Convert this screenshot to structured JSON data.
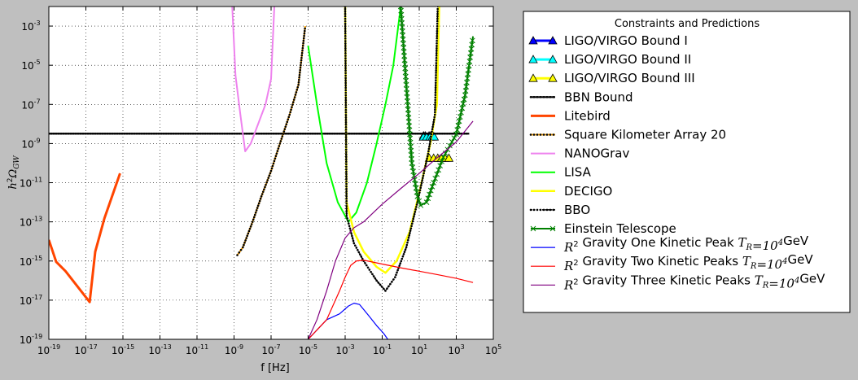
{
  "chart_data": {
    "type": "line",
    "xlabel": "f [Hz]",
    "ylabel": "h²Ω_GW",
    "xscale": "log",
    "yscale": "log",
    "xlim": [
      1e-19,
      100000.0
    ],
    "ylim": [
      1e-19,
      0.01
    ],
    "xticks": [
      {
        "base": "10",
        "exp": "-19"
      },
      {
        "base": "10",
        "exp": "-17"
      },
      {
        "base": "10",
        "exp": "-15"
      },
      {
        "base": "10",
        "exp": "-13"
      },
      {
        "base": "10",
        "exp": "-11"
      },
      {
        "base": "10",
        "exp": "-9"
      },
      {
        "base": "10",
        "exp": "-7"
      },
      {
        "base": "10",
        "exp": "-5"
      },
      {
        "base": "10",
        "exp": "-3"
      },
      {
        "base": "10",
        "exp": "-1"
      },
      {
        "base": "10",
        "exp": "1"
      },
      {
        "base": "10",
        "exp": "3"
      },
      {
        "base": "10",
        "exp": "5"
      }
    ],
    "yticks": [
      {
        "base": "10",
        "exp": "-19"
      },
      {
        "base": "10",
        "exp": "-17"
      },
      {
        "base": "10",
        "exp": "-15"
      },
      {
        "base": "10",
        "exp": "-13"
      },
      {
        "base": "10",
        "exp": "-11"
      },
      {
        "base": "10",
        "exp": "-9"
      },
      {
        "base": "10",
        "exp": "-7"
      },
      {
        "base": "10",
        "exp": "-5"
      },
      {
        "base": "10",
        "exp": "-3"
      }
    ],
    "grid": true,
    "legend": {
      "title": "Constraints and Predictions",
      "placement": "outside-right"
    },
    "series": [
      {
        "name": "LIGO/VIRGO Bound I",
        "color": "#0000ff",
        "marker": "triangle",
        "points": [
          [
            17,
            2.5e-09
          ],
          [
            21,
            2.5e-09
          ],
          [
            34,
            2.5e-09
          ],
          [
            42,
            2.5e-09
          ],
          [
            56,
            2.5e-09
          ]
        ]
      },
      {
        "name": "LIGO/VIRGO Bound II",
        "color": "#00ffff",
        "marker": "triangle",
        "points": [
          [
            17,
            2.2e-09
          ],
          [
            25,
            2.2e-09
          ],
          [
            38,
            2.2e-09
          ],
          [
            50,
            2.2e-09
          ],
          [
            65,
            2.2e-09
          ]
        ]
      },
      {
        "name": "LIGO/VIRGO Bound III",
        "color": "#ffff00",
        "marker": "triangle",
        "points": [
          [
            35,
            1.8e-10
          ],
          [
            60,
            1.8e-10
          ],
          [
            100,
            1.8e-10
          ],
          [
            160,
            1.8e-10
          ],
          [
            250,
            1.8e-10
          ],
          [
            400,
            1.8e-10
          ]
        ]
      },
      {
        "name": "BBN Bound",
        "color": "#000000",
        "marker": "dot",
        "points": [
          [
            1e-19,
            3.2e-09
          ],
          [
            5000.0,
            3.2e-09
          ]
        ]
      },
      {
        "name": "Litebird",
        "color": "#ff4500",
        "points": [
          [
            1e-19,
            1.2e-14
          ],
          [
            2.5e-19,
            9e-16
          ],
          [
            8e-19,
            3e-16
          ],
          [
            1.6e-17,
            8e-18
          ],
          [
            3.2e-17,
            3e-15
          ],
          [
            1e-16,
            1.5e-13
          ],
          [
            7e-16,
            3e-11
          ]
        ]
      },
      {
        "name": "Square Kilometer Array 20",
        "color": "#ffa500",
        "marker": "dot",
        "points": [
          [
            1.5e-09,
            2e-15
          ],
          [
            3e-09,
            5e-15
          ],
          [
            1e-08,
            1e-13
          ],
          [
            3e-08,
            2e-12
          ],
          [
            1e-07,
            4e-11
          ],
          [
            3e-07,
            1e-09
          ],
          [
            1e-06,
            3e-08
          ],
          [
            3e-06,
            1e-06
          ],
          [
            7e-06,
            0.001
          ]
        ]
      },
      {
        "name": "NANOGrav",
        "color": "#ee82ee",
        "points": [
          [
            8e-10,
            0.01
          ],
          [
            1.2e-09,
            3e-06
          ],
          [
            2.2e-09,
            3e-08
          ],
          [
            4e-09,
            4e-10
          ],
          [
            8e-09,
            1e-09
          ],
          [
            2e-08,
            1e-08
          ],
          [
            5e-08,
            1e-07
          ],
          [
            1e-07,
            2e-06
          ],
          [
            1.5e-07,
            0.01
          ]
        ]
      },
      {
        "name": "LISA",
        "color": "#00ff00",
        "points": [
          [
            1e-05,
            0.0001
          ],
          [
            3e-05,
            1e-07
          ],
          [
            0.0001,
            1e-10
          ],
          [
            0.0004,
            1e-12
          ],
          [
            0.0015,
            1e-13
          ],
          [
            0.004,
            3e-13
          ],
          [
            0.015,
            1e-11
          ],
          [
            0.05,
            1e-09
          ],
          [
            0.15,
            1e-07
          ],
          [
            0.4,
            1e-05
          ],
          [
            1,
            0.01
          ]
        ]
      },
      {
        "name": "DECIGO",
        "color": "#ffff00",
        "points": [
          [
            0.001,
            0.01
          ],
          [
            0.0012,
            1e-12
          ],
          [
            0.003,
            3e-14
          ],
          [
            0.01,
            3e-15
          ],
          [
            0.05,
            5e-16
          ],
          [
            0.15,
            2.5e-16
          ],
          [
            0.6,
            1e-15
          ],
          [
            3,
            3e-14
          ],
          [
            10,
            3e-12
          ],
          [
            40,
            1e-09
          ],
          [
            90,
            1e-07
          ],
          [
            120,
            0.01
          ]
        ]
      },
      {
        "name": "BBO",
        "color": "#000000",
        "marker": "dot",
        "points": [
          [
            0.001,
            0.01
          ],
          [
            0.0012,
            2e-13
          ],
          [
            0.003,
            8e-15
          ],
          [
            0.01,
            1e-15
          ],
          [
            0.05,
            1e-16
          ],
          [
            0.15,
            3e-17
          ],
          [
            0.5,
            1.5e-16
          ],
          [
            2,
            5e-15
          ],
          [
            8,
            1e-12
          ],
          [
            30,
            3e-10
          ],
          [
            70,
            3e-08
          ],
          [
            100,
            0.01
          ]
        ]
      },
      {
        "name": "Einstein Telescope",
        "color": "#008000",
        "marker": "x",
        "points": [
          [
            1,
            0.01
          ],
          [
            2,
            1e-06
          ],
          [
            4,
            1e-10
          ],
          [
            8,
            2e-12
          ],
          [
            12,
            7e-13
          ],
          [
            25,
            1e-12
          ],
          [
            60,
            1e-11
          ],
          [
            200,
            2e-10
          ],
          [
            1000.0,
            3e-09
          ],
          [
            3000.0,
            3e-07
          ],
          [
            8000.0,
            0.0003
          ]
        ]
      },
      {
        "name": "R² Gravity One Kinetic Peak T_R=10⁴GeV",
        "color": "#0000ff",
        "points": [
          [
            1e-05,
            1e-19
          ],
          [
            0.0001,
            1e-18
          ],
          [
            0.0005,
            2e-18
          ],
          [
            0.0015,
            5e-18
          ],
          [
            0.003,
            7e-18
          ],
          [
            0.006,
            6e-18
          ],
          [
            0.02,
            1.5e-18
          ],
          [
            0.05,
            5e-19
          ],
          [
            0.12,
            2e-19
          ],
          [
            0.2,
            1e-19
          ]
        ]
      },
      {
        "name": "R² Gravity Two Kinetic Peaks T_R=10⁴GeV",
        "color": "#ff0000",
        "points": [
          [
            1e-05,
            1e-19
          ],
          [
            0.0001,
            1e-18
          ],
          [
            0.0005,
            3e-17
          ],
          [
            0.001,
            1.5e-16
          ],
          [
            0.002,
            6e-16
          ],
          [
            0.004,
            1e-15
          ],
          [
            0.01,
            1.1e-15
          ],
          [
            0.1,
            7e-16
          ],
          [
            1,
            4.5e-16
          ],
          [
            10,
            3e-16
          ],
          [
            100,
            2e-16
          ],
          [
            1000.0,
            1.3e-16
          ],
          [
            8000.0,
            8e-17
          ]
        ]
      },
      {
        "name": "R² Gravity Three Kinetic Peaks T_R=10⁴GeV",
        "color": "#800080",
        "points": [
          [
            1e-05,
            1e-19
          ],
          [
            3e-05,
            1e-18
          ],
          [
            0.0001,
            3e-17
          ],
          [
            0.0003,
            1e-15
          ],
          [
            0.001,
            1.5e-14
          ],
          [
            0.003,
            5e-14
          ],
          [
            0.01,
            1e-13
          ],
          [
            0.1,
            8e-13
          ],
          [
            1,
            5e-12
          ],
          [
            10,
            3e-11
          ],
          [
            100,
            2e-10
          ],
          [
            1000.0,
            1.2e-09
          ],
          [
            8000.0,
            1.4e-08
          ]
        ]
      }
    ]
  },
  "legend_labels": [
    {
      "pre": "LIGO/VIRGO Bound I"
    },
    {
      "pre": "LIGO/VIRGO Bound II"
    },
    {
      "pre": "LIGO/VIRGO Bound III"
    },
    {
      "pre": "BBN Bound"
    },
    {
      "pre": "Litebird"
    },
    {
      "pre": "Square Kilometer Array 20"
    },
    {
      "pre": "NANOGrav"
    },
    {
      "pre": "LISA"
    },
    {
      "pre": "DECIGO"
    },
    {
      "pre": "BBO"
    },
    {
      "pre": "Einstein Telescope"
    },
    {
      "math1": "R",
      "sup1": "2",
      "pre": " Gravity One Kinetic Peak ",
      "math2": "T",
      "sub2": "R",
      "post": "=10",
      "sup2": "4",
      "tail": "GeV"
    },
    {
      "math1": "R",
      "sup1": "2",
      "pre": " Gravity Two Kinetic Peaks ",
      "math2": "T",
      "sub2": "R",
      "post": "=10",
      "sup2": "4",
      "tail": "GeV"
    },
    {
      "math1": "R",
      "sup1": "2",
      "pre": " Gravity Three Kinetic Peaks ",
      "math2": "T",
      "sub2": "R",
      "post": "=10",
      "sup2": "4",
      "tail": "GeV"
    }
  ]
}
